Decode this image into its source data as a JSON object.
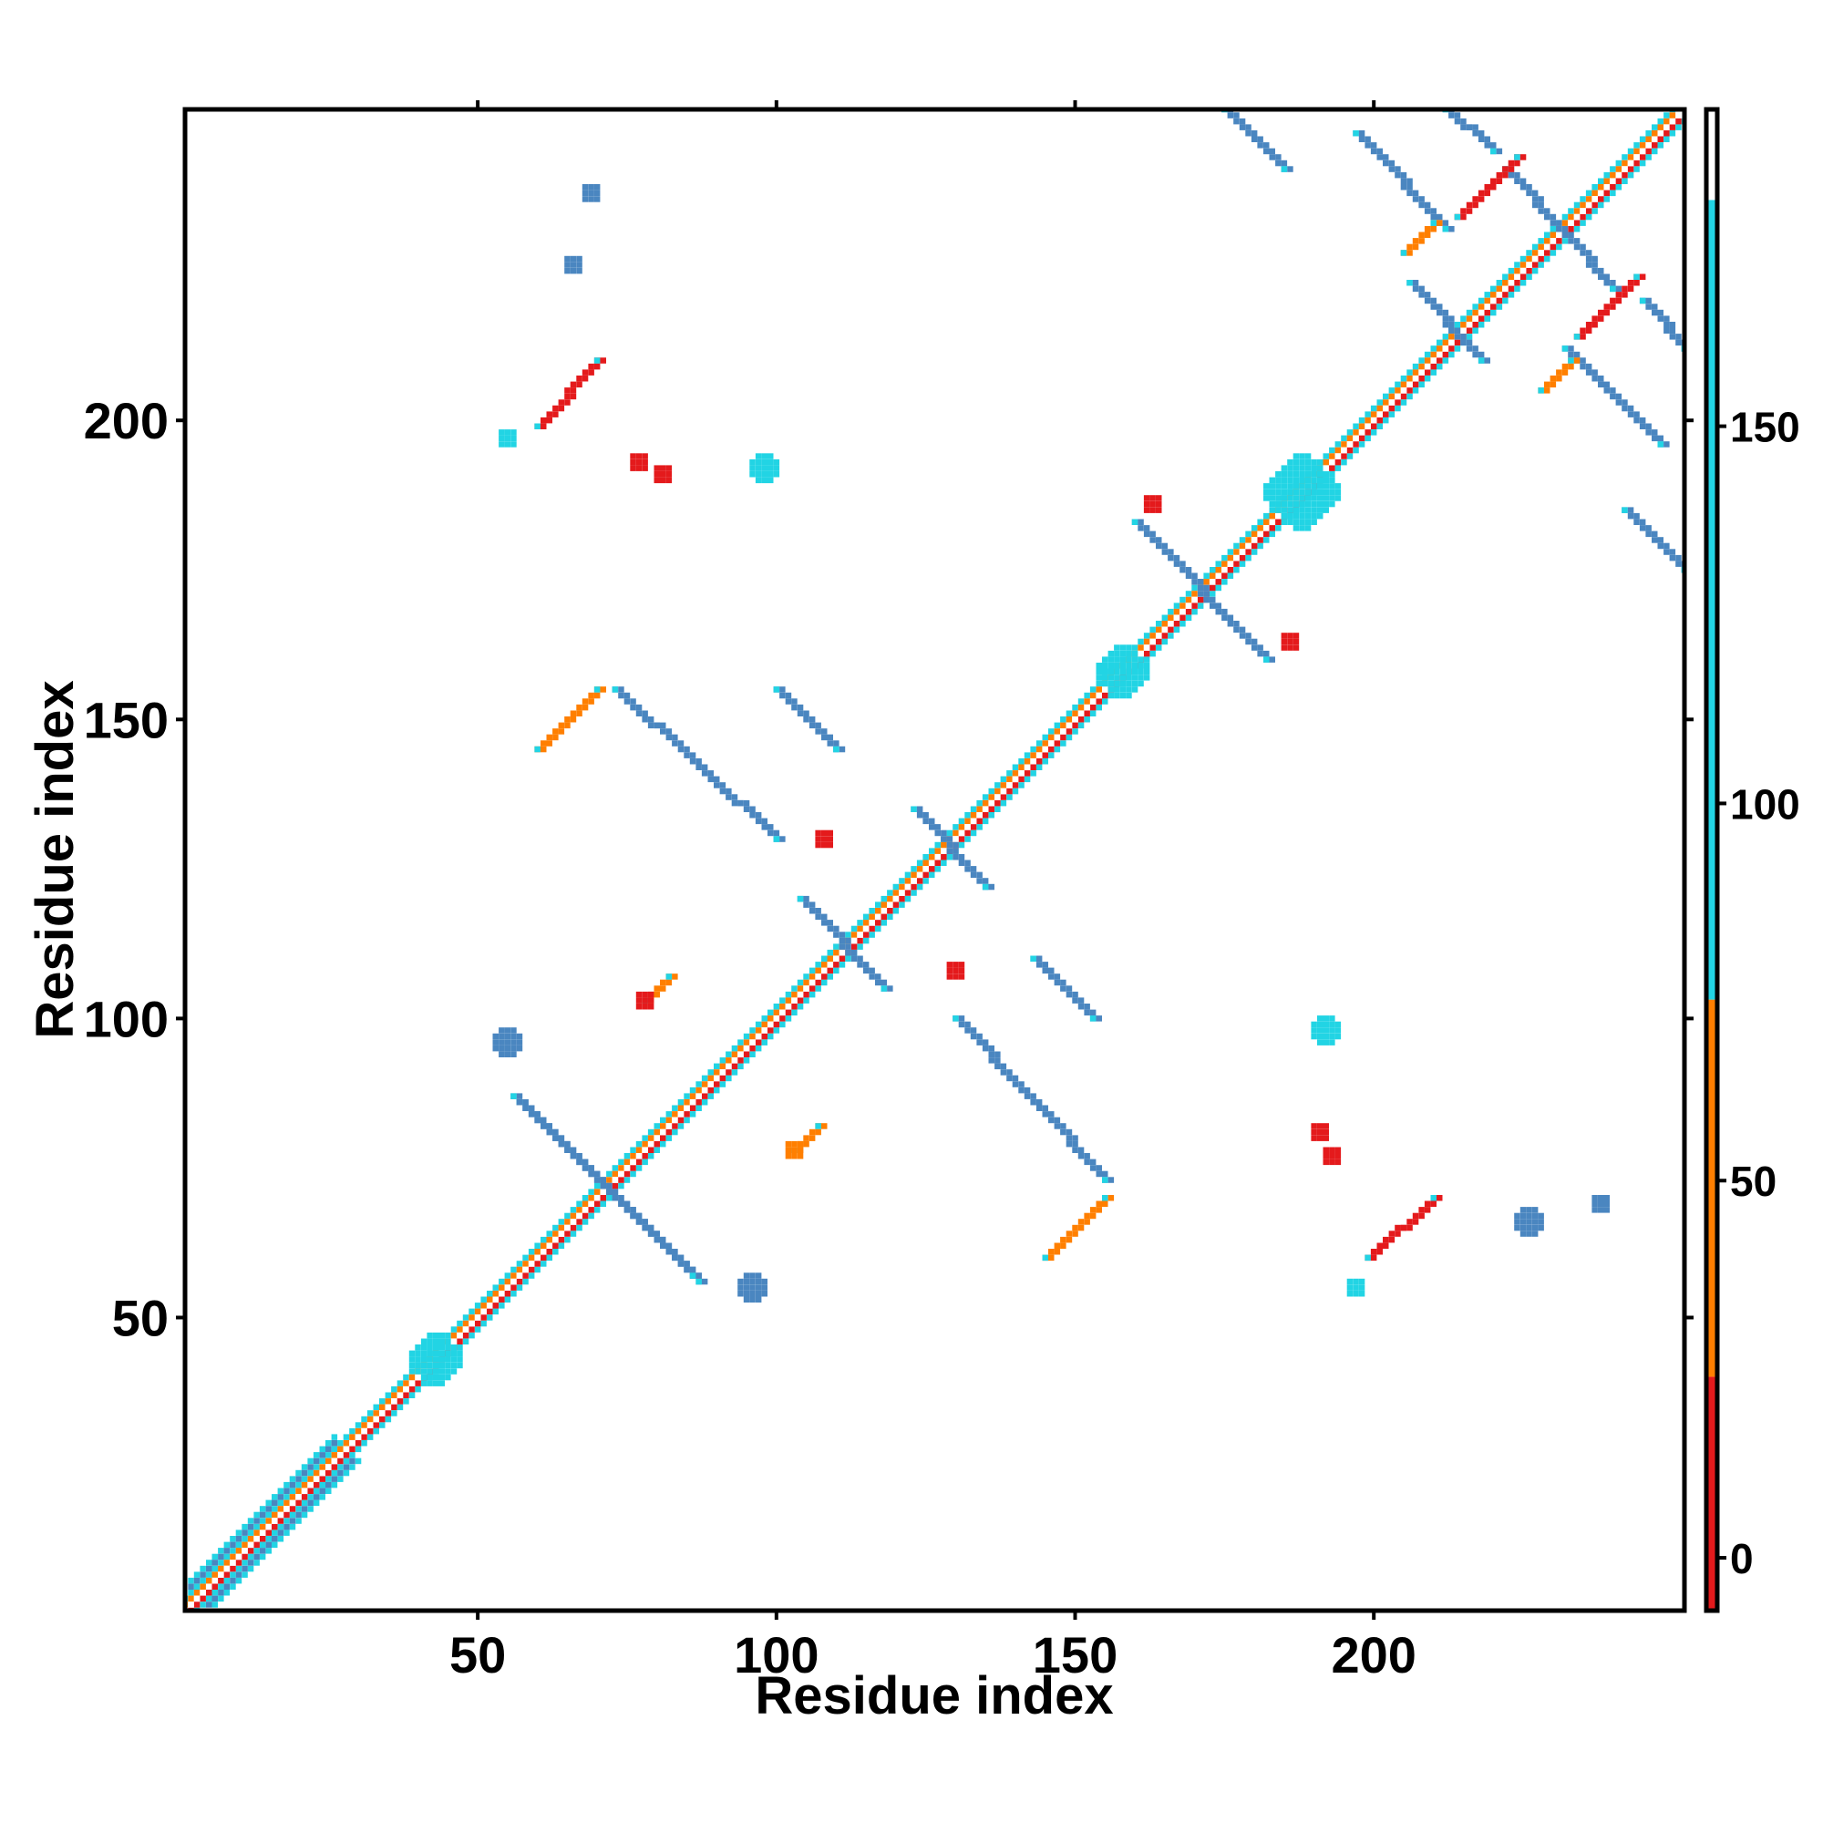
{
  "chart_data": {
    "type": "heatmap",
    "title": "",
    "xlabel": "Residue index",
    "ylabel": "Residue index",
    "xlim": [
      1,
      252
    ],
    "ylim": [
      1,
      252
    ],
    "x_ticks": [
      50,
      100,
      150,
      200
    ],
    "y_ticks": [
      50,
      100,
      150,
      200
    ],
    "grid": false,
    "colorbar": {
      "position": "right",
      "ticks": [
        0,
        50,
        100,
        150
      ],
      "range": [
        -7,
        192
      ],
      "bands": [
        {
          "from": -7,
          "to": 24,
          "color": "#e41a1c"
        },
        {
          "from": 24,
          "to": 74,
          "color": "#ff7f00"
        },
        {
          "from": 74,
          "to": 180,
          "color": "#22d4e4"
        },
        {
          "from": 180,
          "to": 192,
          "color": "#ffffff"
        }
      ]
    },
    "palette": {
      "red": "#e41a1c",
      "orange": "#ff7f00",
      "cyan": "#22d4e4",
      "steel": "#4a86c0",
      "white": "#ffffff"
    },
    "features": [
      {
        "kind": "diagonal",
        "x0": 1,
        "y0": 1,
        "x1": 250,
        "y1": 250
      },
      {
        "kind": "helix-band",
        "x0": 2,
        "y0": 2,
        "x1": 26,
        "y1": 26
      },
      {
        "kind": "sheet",
        "x0": 57,
        "y0": 86,
        "x1": 87,
        "y1": 56,
        "color": "steel"
      },
      {
        "kind": "sheet",
        "x0": 86,
        "y0": 57,
        "x1": 56,
        "y1": 87,
        "color": "steel"
      },
      {
        "kind": "sheet",
        "x0": 73,
        "y0": 155,
        "x1": 100,
        "y1": 130,
        "color": "steel"
      },
      {
        "kind": "sheet",
        "x0": 130,
        "y0": 100,
        "x1": 155,
        "y1": 73,
        "color": "steel"
      },
      {
        "kind": "sheet",
        "x0": 100,
        "y0": 155,
        "x1": 110,
        "y1": 145,
        "color": "steel"
      },
      {
        "kind": "sheet",
        "x0": 143,
        "y0": 110,
        "x1": 153,
        "y1": 100,
        "color": "steel"
      },
      {
        "kind": "sheet",
        "x0": 104,
        "y0": 120,
        "x1": 118,
        "y1": 105,
        "color": "steel"
      },
      {
        "kind": "sheet",
        "x0": 123,
        "y0": 135,
        "x1": 135,
        "y1": 122,
        "color": "steel"
      },
      {
        "kind": "sheet",
        "x0": 160,
        "y0": 183,
        "x1": 182,
        "y1": 160,
        "color": "steel"
      },
      {
        "kind": "sheet",
        "x0": 175,
        "y0": 252,
        "x1": 185,
        "y1": 242,
        "color": "steel"
      },
      {
        "kind": "sheet",
        "x0": 197,
        "y0": 248,
        "x1": 212,
        "y1": 232,
        "color": "steel"
      },
      {
        "kind": "sheet",
        "x0": 212,
        "y0": 252,
        "x1": 220,
        "y1": 245,
        "color": "steel"
      },
      {
        "kind": "sheet",
        "x0": 222,
        "y0": 242,
        "x1": 240,
        "y1": 222,
        "color": "steel"
      },
      {
        "kind": "sheet",
        "x0": 232,
        "y0": 212,
        "x1": 248,
        "y1": 196,
        "color": "steel"
      },
      {
        "kind": "sheet",
        "x0": 245,
        "y0": 220,
        "x1": 252,
        "y1": 212,
        "color": "steel"
      },
      {
        "kind": "sheet",
        "x0": 242,
        "y0": 185,
        "x1": 252,
        "y1": 175,
        "color": "steel"
      },
      {
        "kind": "sheet",
        "x0": 206,
        "y0": 223,
        "x1": 218,
        "y1": 210,
        "color": "steel"
      },
      {
        "kind": "parallel",
        "x0": 60,
        "y0": 199,
        "x1": 70,
        "y1": 210,
        "color": "red"
      },
      {
        "kind": "parallel",
        "x0": 199,
        "y0": 60,
        "x1": 210,
        "y1": 70,
        "color": "red"
      },
      {
        "kind": "parallel",
        "x0": 60,
        "y0": 145,
        "x1": 70,
        "y1": 155,
        "color": "orange"
      },
      {
        "kind": "parallel",
        "x0": 145,
        "y0": 60,
        "x1": 155,
        "y1": 70,
        "color": "orange"
      },
      {
        "kind": "parallel",
        "x0": 78,
        "y0": 103,
        "x1": 82,
        "y1": 107,
        "color": "orange"
      },
      {
        "kind": "parallel",
        "x0": 103,
        "y0": 78,
        "x1": 107,
        "y1": 82,
        "color": "orange"
      },
      {
        "kind": "parallel",
        "x0": 205,
        "y0": 228,
        "x1": 210,
        "y1": 233,
        "color": "orange"
      },
      {
        "kind": "parallel",
        "x0": 228,
        "y0": 205,
        "x1": 233,
        "y1": 210,
        "color": "orange"
      },
      {
        "kind": "parallel",
        "x0": 214,
        "y0": 234,
        "x1": 224,
        "y1": 244,
        "color": "red"
      },
      {
        "kind": "parallel",
        "x0": 234,
        "y0": 214,
        "x1": 244,
        "y1": 224,
        "color": "red"
      },
      {
        "kind": "patch",
        "x": 43,
        "y": 43,
        "r": 4,
        "color": "cyan"
      },
      {
        "kind": "patch",
        "x": 188,
        "y": 188,
        "r": 6,
        "color": "cyan"
      },
      {
        "kind": "patch",
        "x": 158,
        "y": 158,
        "r": 4,
        "color": "cyan"
      },
      {
        "kind": "patch",
        "x": 98,
        "y": 192,
        "r": 2,
        "color": "cyan"
      },
      {
        "kind": "patch",
        "x": 192,
        "y": 98,
        "r": 2,
        "color": "cyan"
      },
      {
        "kind": "patch",
        "x": 55,
        "y": 197,
        "r": 1,
        "color": "cyan"
      },
      {
        "kind": "patch",
        "x": 197,
        "y": 55,
        "r": 1,
        "color": "cyan"
      },
      {
        "kind": "patch",
        "x": 55,
        "y": 96,
        "r": 2,
        "color": "steel"
      },
      {
        "kind": "patch",
        "x": 96,
        "y": 55,
        "r": 2,
        "color": "steel"
      },
      {
        "kind": "patch",
        "x": 69,
        "y": 238,
        "r": 1,
        "color": "steel"
      },
      {
        "kind": "patch",
        "x": 238,
        "y": 69,
        "r": 1,
        "color": "steel"
      },
      {
        "kind": "patch",
        "x": 81,
        "y": 191,
        "r": 1,
        "color": "red"
      },
      {
        "kind": "patch",
        "x": 191,
        "y": 81,
        "r": 1,
        "color": "red"
      },
      {
        "kind": "patch",
        "x": 103,
        "y": 78,
        "r": 1,
        "color": "orange"
      },
      {
        "kind": "patch",
        "x": 78,
        "y": 103,
        "r": 1,
        "color": "red"
      },
      {
        "kind": "patch",
        "x": 193,
        "y": 77,
        "r": 1,
        "color": "red"
      },
      {
        "kind": "patch",
        "x": 77,
        "y": 193,
        "r": 1,
        "color": "red"
      },
      {
        "kind": "patch",
        "x": 186,
        "y": 163,
        "r": 1,
        "color": "red"
      },
      {
        "kind": "patch",
        "x": 163,
        "y": 186,
        "r": 1,
        "color": "red"
      },
      {
        "kind": "patch",
        "x": 108,
        "y": 130,
        "r": 1,
        "color": "red"
      },
      {
        "kind": "patch",
        "x": 130,
        "y": 108,
        "r": 1,
        "color": "red"
      },
      {
        "kind": "patch",
        "x": 226,
        "y": 66,
        "r": 2,
        "color": "steel"
      },
      {
        "kind": "patch",
        "x": 66,
        "y": 226,
        "r": 1,
        "color": "steel"
      }
    ]
  }
}
